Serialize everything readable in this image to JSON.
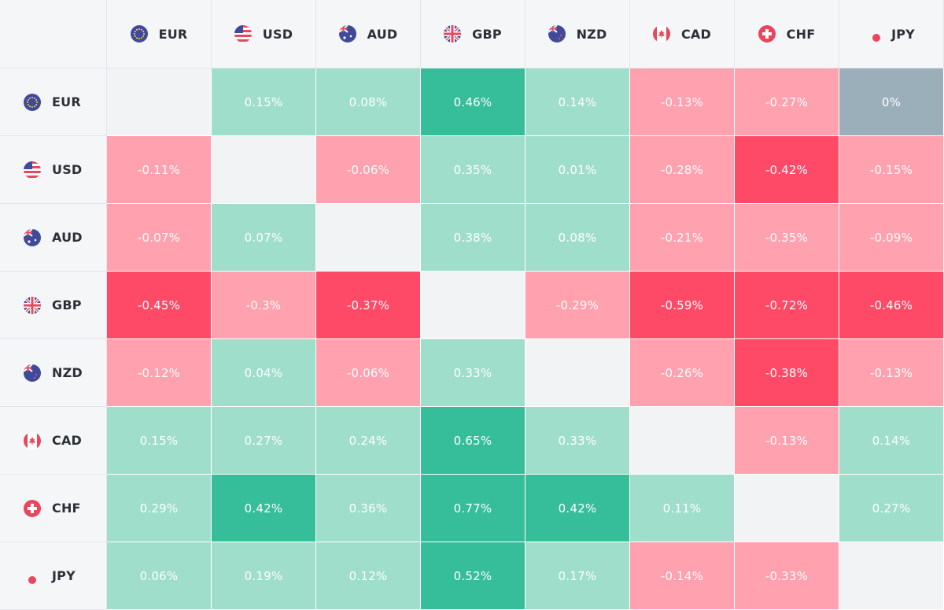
{
  "chart_data": {
    "type": "heatmap",
    "columns": [
      {
        "code": "EUR",
        "icon": "eu-flag-icon"
      },
      {
        "code": "USD",
        "icon": "us-flag-icon"
      },
      {
        "code": "AUD",
        "icon": "au-flag-icon"
      },
      {
        "code": "GBP",
        "icon": "uk-flag-icon"
      },
      {
        "code": "NZD",
        "icon": "nz-flag-icon"
      },
      {
        "code": "CAD",
        "icon": "ca-flag-icon"
      },
      {
        "code": "CHF",
        "icon": "ch-flag-icon"
      },
      {
        "code": "JPY",
        "icon": "jp-flag-icon"
      }
    ],
    "rows": [
      {
        "code": "EUR",
        "icon": "eu-flag-icon",
        "values": [
          null,
          "0.15%",
          "0.08%",
          "0.46%",
          "0.14%",
          "-0.13%",
          "-0.27%",
          "0%"
        ]
      },
      {
        "code": "USD",
        "icon": "us-flag-icon",
        "values": [
          "-0.11%",
          null,
          "-0.06%",
          "0.35%",
          "0.01%",
          "-0.28%",
          "-0.42%",
          "-0.15%"
        ]
      },
      {
        "code": "AUD",
        "icon": "au-flag-icon",
        "values": [
          "-0.07%",
          "0.07%",
          null,
          "0.38%",
          "0.08%",
          "-0.21%",
          "-0.35%",
          "-0.09%"
        ]
      },
      {
        "code": "GBP",
        "icon": "uk-flag-icon",
        "values": [
          "-0.45%",
          "-0.3%",
          "-0.37%",
          null,
          "-0.29%",
          "-0.59%",
          "-0.72%",
          "-0.46%"
        ]
      },
      {
        "code": "NZD",
        "icon": "nz-flag-icon",
        "values": [
          "-0.12%",
          "0.04%",
          "-0.06%",
          "0.33%",
          null,
          "-0.26%",
          "-0.38%",
          "-0.13%"
        ]
      },
      {
        "code": "CAD",
        "icon": "ca-flag-icon",
        "values": [
          "0.15%",
          "0.27%",
          "0.24%",
          "0.65%",
          "0.33%",
          null,
          "-0.13%",
          "0.14%"
        ]
      },
      {
        "code": "CHF",
        "icon": "ch-flag-icon",
        "values": [
          "0.29%",
          "0.42%",
          "0.36%",
          "0.77%",
          "0.42%",
          "0.11%",
          null,
          "0.27%"
        ]
      },
      {
        "code": "JPY",
        "icon": "jp-flag-icon",
        "values": [
          "0.06%",
          "0.19%",
          "0.12%",
          "0.52%",
          "0.17%",
          "-0.14%",
          "-0.33%",
          null
        ]
      }
    ],
    "colors": {
      "strong_positive": "#36bd9a",
      "positive": "#9fdecb",
      "negative": "#ffa1ae",
      "strong_negative": "#ff4a67",
      "neutral": "#9aafba",
      "diagonal": "#f2f3f5"
    }
  }
}
